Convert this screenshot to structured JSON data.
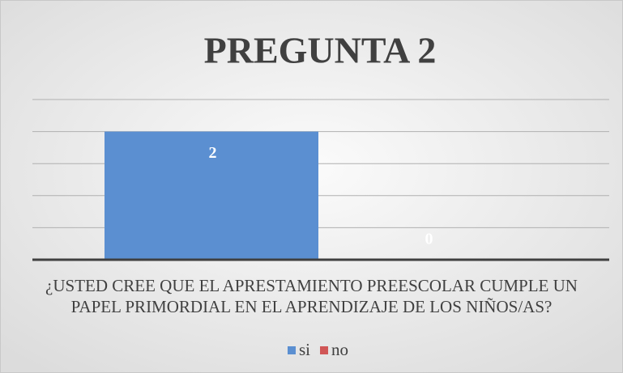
{
  "chart_data": {
    "type": "bar",
    "title": "PREGUNTA 2",
    "categories": [
      "¿USTED CREE QUE EL APRESTAMIENTO PREESCOLAR CUMPLE UN PAPEL PRIMORDIAL EN EL APRENDIZAJE DE LOS NIÑOS/AS?"
    ],
    "series": [
      {
        "name": "si",
        "color": "#5b8fd1",
        "values": [
          2
        ]
      },
      {
        "name": "no",
        "color": "#d05656",
        "values": [
          0
        ]
      }
    ],
    "ylim": [
      0,
      2.5
    ],
    "yticks": [
      0,
      0.5,
      1,
      1.5,
      2,
      2.5
    ],
    "grid": true,
    "legend": "bottom"
  }
}
